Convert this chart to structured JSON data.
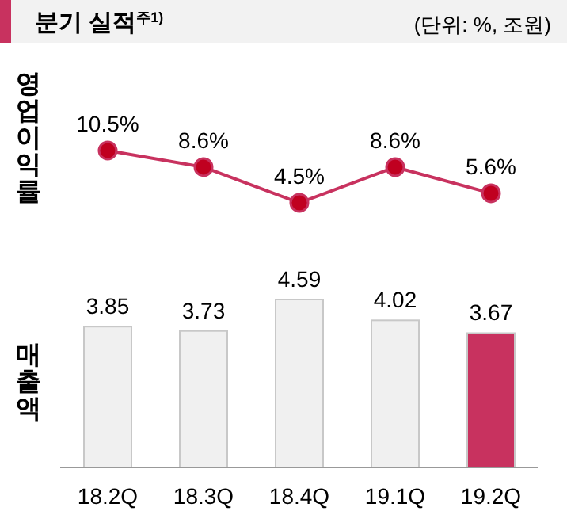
{
  "chart_data": [
    {
      "type": "line",
      "title": "분기 실적$^{주1)}$",
      "annotations": [
        "(단위: %, 조원)"
      ],
      "ylabel": "영업이익률",
      "categories": [
        null,
        null,
        null,
        null,
        null
      ],
      "marker": "circle",
      "line_style": "solid",
      "series": [
        {
          "color": "#c8325f",
          "values": [
            10.5,
            8.6,
            4.5,
            8.6,
            5.6
          ],
          "value_labels": [
            "10.5%",
            "8.6%",
            "4.5%",
            "8.6%",
            "5.6%"
          ]
        }
      ]
    },
    {
      "type": "bar",
      "ylabel": "매출액",
      "categories": [
        "18.2Q",
        "18.3Q",
        "18.4Q",
        "19.1Q",
        "19.2Q"
      ],
      "values": [
        3.85,
        3.73,
        4.59,
        4.02,
        3.67
      ],
      "colors": [
        "#f0f0f0",
        "#f0f0f0",
        "#f0f0f0",
        "#f0f0f0",
        "#c8325f"
      ],
      "data_labels": true
    }
  ]
}
